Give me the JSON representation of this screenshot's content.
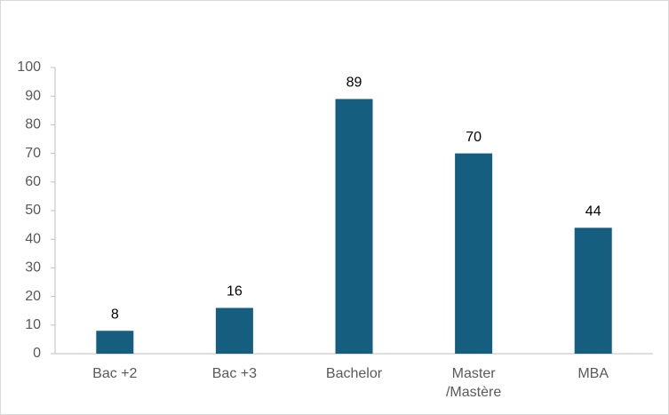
{
  "chart_data": {
    "type": "bar",
    "categories": [
      "Bac +2",
      "Bac +3",
      "Bachelor",
      "Master /Mastère",
      "MBA"
    ],
    "values": [
      8,
      16,
      89,
      70,
      44
    ],
    "color": "#165e80",
    "ylim": [
      0,
      100
    ],
    "yticks": [
      0,
      10,
      20,
      30,
      40,
      50,
      60,
      70,
      80,
      90,
      100
    ],
    "grid": false,
    "data_labels": true
  }
}
